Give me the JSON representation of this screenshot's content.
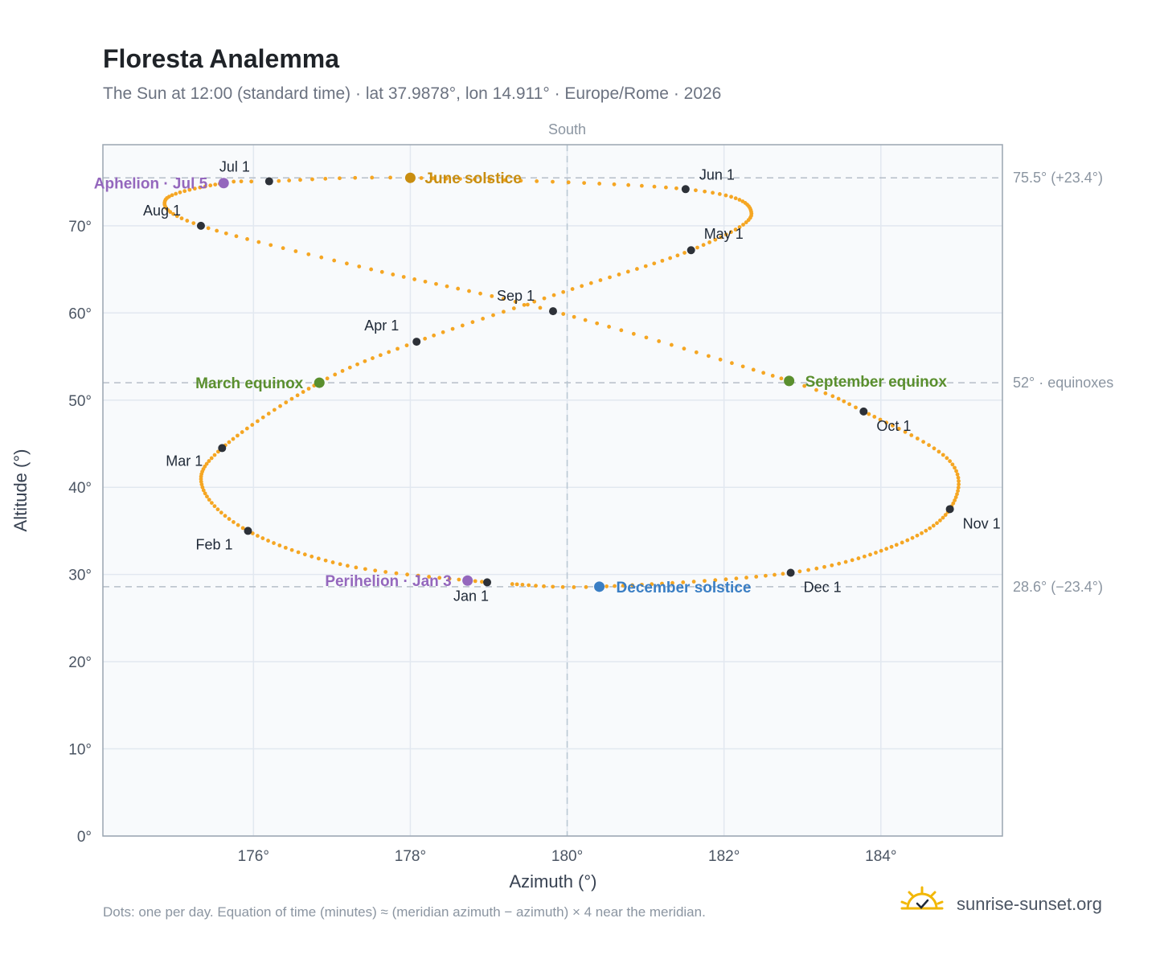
{
  "header": {
    "title": "Floresta Analemma",
    "subtitle": "The Sun at 12:00 (standard time) · lat 37.9878°, lon 14.911° · Europe/Rome · 2026"
  },
  "footer": {
    "note": "Dots: one per day. Equation of time (minutes) ≈ (meridian azimuth − azimuth) × 4 near the meridian.",
    "brand": "sunrise-sunset.org"
  },
  "colors": {
    "path": "#f5a623",
    "month_marker": "#2d3138",
    "june_solstice": "#c98e10",
    "december_solstice": "#3a7ec4",
    "equinox": "#5a8f2e",
    "apsis": "#9467bd",
    "plot_bg": "#f8fafc",
    "grid": "#e2e8f0",
    "frame": "#9aa5b1"
  },
  "chart_data": {
    "type": "scatter",
    "xlabel": "Azimuth (°)",
    "ylabel": "Altitude (°)",
    "xlim": [
      174.08,
      185.55
    ],
    "ylim": [
      0,
      79.3
    ],
    "x_ticks": [
      176,
      178,
      180,
      182,
      184
    ],
    "x_tick_labels": [
      "176°",
      "178°",
      "180°",
      "182°",
      "184°"
    ],
    "y_ticks": [
      0,
      10,
      20,
      30,
      40,
      50,
      60,
      70
    ],
    "y_tick_labels": [
      "0°",
      "10°",
      "20°",
      "30°",
      "40°",
      "50°",
      "60°",
      "70°"
    ],
    "grid": true,
    "meridian": {
      "azimuth": 180,
      "label": "South"
    },
    "reference_lines": [
      {
        "altitude": 75.5,
        "label": "75.5° (+23.4°)"
      },
      {
        "altitude": 52,
        "label": "52° · equinoxes"
      },
      {
        "altitude": 28.6,
        "label": "28.6° (−23.4°)"
      }
    ],
    "month_markers": [
      {
        "label": "Jan 1",
        "azimuth": 178.98,
        "altitude": 29.1
      },
      {
        "label": "Feb 1",
        "azimuth": 175.93,
        "altitude": 35.0
      },
      {
        "label": "Mar 1",
        "azimuth": 175.6,
        "altitude": 44.5
      },
      {
        "label": "Apr 1",
        "azimuth": 178.08,
        "altitude": 56.7
      },
      {
        "label": "May 1",
        "azimuth": 181.58,
        "altitude": 67.2
      },
      {
        "label": "Jun 1",
        "azimuth": 181.51,
        "altitude": 74.2
      },
      {
        "label": "Jul 1",
        "azimuth": 176.2,
        "altitude": 75.1
      },
      {
        "label": "Aug 1",
        "azimuth": 175.33,
        "altitude": 70.0
      },
      {
        "label": "Sep 1",
        "azimuth": 179.82,
        "altitude": 60.2
      },
      {
        "label": "Oct 1",
        "azimuth": 183.78,
        "altitude": 48.7
      },
      {
        "label": "Nov 1",
        "azimuth": 184.88,
        "altitude": 37.5
      },
      {
        "label": "Dec 1",
        "azimuth": 182.85,
        "altitude": 30.2
      }
    ],
    "events": [
      {
        "label": "June solstice",
        "azimuth": 178.0,
        "altitude": 75.5,
        "kind": "june_solstice"
      },
      {
        "label": "December solstice",
        "azimuth": 180.41,
        "altitude": 28.6,
        "kind": "december_solstice"
      },
      {
        "label": "March equinox",
        "azimuth": 176.84,
        "altitude": 52.0,
        "kind": "equinox"
      },
      {
        "label": "September equinox",
        "azimuth": 182.83,
        "altitude": 52.2,
        "kind": "equinox"
      },
      {
        "label": "Aphelion · Jul 5",
        "azimuth": 175.62,
        "altitude": 74.9,
        "kind": "apsis"
      },
      {
        "label": "Perihelion · Jan 3",
        "azimuth": 178.73,
        "altitude": 29.3,
        "kind": "apsis"
      }
    ],
    "daily_path_anchors": [
      {
        "day": 1,
        "azimuth": 178.98,
        "altitude": 29.1
      },
      {
        "day": 16,
        "azimuth": 177.2,
        "altitude": 31.0
      },
      {
        "day": 32,
        "azimuth": 175.93,
        "altitude": 35.0
      },
      {
        "day": 46,
        "azimuth": 175.35,
        "altitude": 40.0
      },
      {
        "day": 60,
        "azimuth": 175.6,
        "altitude": 44.5
      },
      {
        "day": 79,
        "azimuth": 176.84,
        "altitude": 52.0
      },
      {
        "day": 91,
        "azimuth": 178.08,
        "altitude": 56.7
      },
      {
        "day": 106,
        "azimuth": 179.95,
        "altitude": 62.4
      },
      {
        "day": 121,
        "azimuth": 181.58,
        "altitude": 67.2
      },
      {
        "day": 136,
        "azimuth": 182.35,
        "altitude": 71.4
      },
      {
        "day": 152,
        "azimuth": 181.51,
        "altitude": 74.2
      },
      {
        "day": 172,
        "azimuth": 178.0,
        "altitude": 75.5
      },
      {
        "day": 182,
        "azimuth": 176.2,
        "altitude": 75.1
      },
      {
        "day": 186,
        "azimuth": 175.62,
        "altitude": 74.9
      },
      {
        "day": 200,
        "azimuth": 174.88,
        "altitude": 73.0
      },
      {
        "day": 213,
        "azimuth": 175.33,
        "altitude": 70.0
      },
      {
        "day": 228,
        "azimuth": 177.5,
        "altitude": 65.0
      },
      {
        "day": 244,
        "azimuth": 179.82,
        "altitude": 60.2
      },
      {
        "day": 265,
        "azimuth": 182.83,
        "altitude": 52.2
      },
      {
        "day": 274,
        "azimuth": 183.78,
        "altitude": 48.7
      },
      {
        "day": 290,
        "azimuth": 184.88,
        "altitude": 43.0
      },
      {
        "day": 305,
        "azimuth": 184.88,
        "altitude": 37.5
      },
      {
        "day": 319,
        "azimuth": 184.2,
        "altitude": 33.4
      },
      {
        "day": 335,
        "azimuth": 182.85,
        "altitude": 30.2
      },
      {
        "day": 355,
        "azimuth": 180.41,
        "altitude": 28.6
      },
      {
        "day": 365,
        "azimuth": 179.3,
        "altitude": 28.9
      }
    ]
  }
}
